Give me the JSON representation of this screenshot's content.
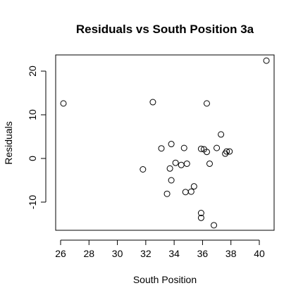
{
  "chart_data": {
    "type": "scatter",
    "title": "Residuals vs South Position 3a",
    "xlabel": "South Position",
    "ylabel": "Residuals",
    "xlim": [
      26,
      40.4
    ],
    "ylim": [
      -16.5,
      24
    ],
    "x_ticks": [
      26,
      28,
      30,
      32,
      34,
      36,
      38,
      40
    ],
    "x_tick_labels": [
      "26",
      "28",
      "30",
      "32",
      "34",
      "36",
      "38",
      "40"
    ],
    "y_ticks": [
      -10,
      0,
      10,
      20
    ],
    "y_tick_labels": [
      "-10",
      "0",
      "10",
      "20"
    ],
    "grid": false,
    "legend": false,
    "marker": "open-circle",
    "points": [
      {
        "x": 26.2,
        "y": 12.6
      },
      {
        "x": 32.5,
        "y": 12.9
      },
      {
        "x": 36.3,
        "y": 12.6
      },
      {
        "x": 40.5,
        "y": 22.4
      },
      {
        "x": 31.8,
        "y": -2.5
      },
      {
        "x": 33.1,
        "y": 2.3
      },
      {
        "x": 33.8,
        "y": 3.3
      },
      {
        "x": 33.7,
        "y": -2.3
      },
      {
        "x": 34.1,
        "y": -1.0
      },
      {
        "x": 34.5,
        "y": -1.5
      },
      {
        "x": 34.7,
        "y": 2.4
      },
      {
        "x": 34.9,
        "y": -1.2
      },
      {
        "x": 33.8,
        "y": -5.0
      },
      {
        "x": 33.5,
        "y": -8.1
      },
      {
        "x": 34.8,
        "y": -7.7
      },
      {
        "x": 35.2,
        "y": -7.6
      },
      {
        "x": 35.4,
        "y": -6.4
      },
      {
        "x": 35.9,
        "y": -12.5
      },
      {
        "x": 35.9,
        "y": -13.6
      },
      {
        "x": 36.8,
        "y": -15.3
      },
      {
        "x": 35.9,
        "y": 2.2
      },
      {
        "x": 36.1,
        "y": 2.1
      },
      {
        "x": 36.3,
        "y": 1.5
      },
      {
        "x": 36.5,
        "y": -1.2
      },
      {
        "x": 37.0,
        "y": 2.4
      },
      {
        "x": 37.3,
        "y": 5.5
      },
      {
        "x": 37.6,
        "y": 1.1
      },
      {
        "x": 37.7,
        "y": 1.6
      },
      {
        "x": 37.9,
        "y": 1.6
      }
    ]
  }
}
